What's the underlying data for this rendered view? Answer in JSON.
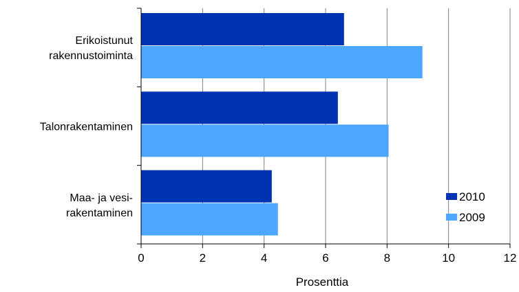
{
  "chart_data": {
    "type": "bar",
    "orientation": "horizontal",
    "categories": [
      [
        "Erikoistunut",
        "rakennustoiminta"
      ],
      [
        "Talonrakentaminen"
      ],
      [
        "Maa- ja vesi-",
        "rakentaminen"
      ]
    ],
    "series": [
      {
        "name": "2010",
        "color": "#0033b2",
        "values": [
          6.6,
          6.4,
          4.25
        ]
      },
      {
        "name": "2009",
        "color": "#4da6ff",
        "values": [
          9.15,
          8.05,
          4.45
        ]
      }
    ],
    "xlim": [
      0,
      12
    ],
    "xticks": [
      0,
      2,
      4,
      6,
      8,
      10,
      12
    ],
    "xlabel": "Prosenttia",
    "ylabel": "",
    "title": "",
    "grid": "vertical",
    "legend_position": "bottom-right"
  }
}
